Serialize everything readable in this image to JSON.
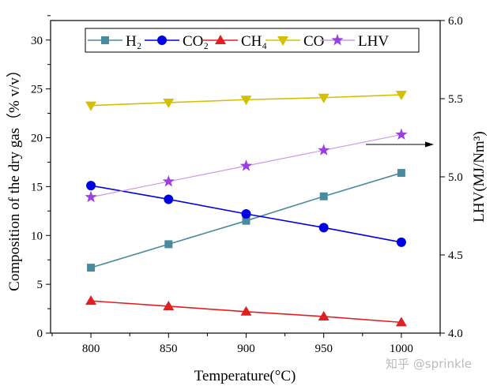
{
  "chart_data": {
    "type": "line",
    "x": [
      800,
      850,
      900,
      950,
      1000
    ],
    "xlabel": "Temperature(°C)",
    "ylabel": "Composition of the dry gas（% v/v）",
    "ylabel_right": "LHV(MJ/Nm³)",
    "xlim": [
      774,
      1025
    ],
    "ylim": [
      0,
      32
    ],
    "ylim_right": [
      4.0,
      6.0
    ],
    "xticks": [
      800,
      850,
      900,
      950,
      1000
    ],
    "yticks": [
      0,
      5,
      10,
      15,
      20,
      25,
      30
    ],
    "yticks_right": [
      "4.0",
      "4.5",
      "5.0",
      "5.5",
      "6.0"
    ],
    "grid": false,
    "legend_placement": "top",
    "series": [
      {
        "name": "H₂",
        "axis": "left",
        "marker": "square",
        "color": "#4a8a9e",
        "values": [
          6.7,
          9.1,
          11.5,
          14.0,
          16.4
        ]
      },
      {
        "name": "CO₂",
        "axis": "left",
        "marker": "circle",
        "color": "#0000e0",
        "values": [
          15.1,
          13.7,
          12.2,
          10.8,
          9.3
        ]
      },
      {
        "name": "CH₄",
        "axis": "left",
        "marker": "triangle-up",
        "color": "#e02020",
        "values": [
          3.3,
          2.75,
          2.2,
          1.7,
          1.1
        ]
      },
      {
        "name": "CO",
        "axis": "left",
        "marker": "triangle-down",
        "color": "#d4c000",
        "values": [
          23.3,
          23.6,
          23.9,
          24.1,
          24.4
        ]
      },
      {
        "name": "LHV",
        "axis": "right",
        "marker": "star",
        "color": "#9b3fe0",
        "line_color": "#c99ae8",
        "values": [
          4.87,
          4.97,
          5.07,
          5.17,
          5.27
        ]
      }
    ],
    "annotations": [
      {
        "type": "arrow",
        "points_to": "right-axis"
      }
    ]
  },
  "watermark": "知乎 @sprinkle"
}
